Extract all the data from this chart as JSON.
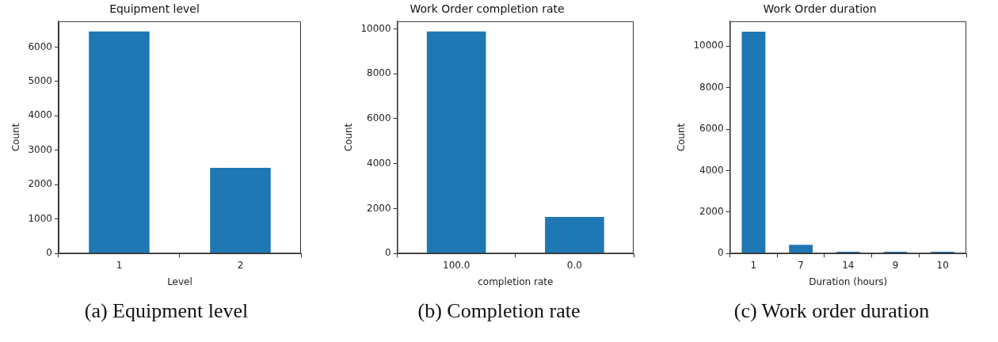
{
  "chart_data": [
    {
      "type": "bar",
      "title": "Equipment level",
      "xlabel": "Level",
      "ylabel": "Count",
      "categories": [
        "1",
        "2"
      ],
      "values": [
        6450,
        2490
      ],
      "color": "#1f77b4",
      "ylim": [
        0,
        6750
      ],
      "yticks": [
        0,
        1000,
        2000,
        3000,
        4000,
        5000,
        6000
      ],
      "grid": false,
      "annotations": [
        "(a) Equipment level"
      ]
    },
    {
      "type": "bar",
      "title": "Work Order completion rate",
      "xlabel": "completion rate",
      "ylabel": "Count",
      "categories": [
        "100.0",
        "0.0"
      ],
      "values": [
        9880,
        1630
      ],
      "color": "#1f77b4",
      "ylim": [
        0,
        10340
      ],
      "yticks": [
        0,
        2000,
        4000,
        6000,
        8000,
        10000
      ],
      "grid": false,
      "annotations": [
        "(b) Completion rate"
      ]
    },
    {
      "type": "bar",
      "title": "Work Order duration",
      "xlabel": "Duration (hours)",
      "ylabel": "Count",
      "categories": [
        "1",
        "7",
        "14",
        "9",
        "10"
      ],
      "values": [
        10700,
        420,
        80,
        80,
        80
      ],
      "color": "#1f77b4",
      "ylim": [
        0,
        11200
      ],
      "yticks": [
        0,
        2000,
        4000,
        6000,
        8000,
        10000
      ],
      "grid": false,
      "annotations": [
        "(c) Work order duration"
      ]
    }
  ]
}
